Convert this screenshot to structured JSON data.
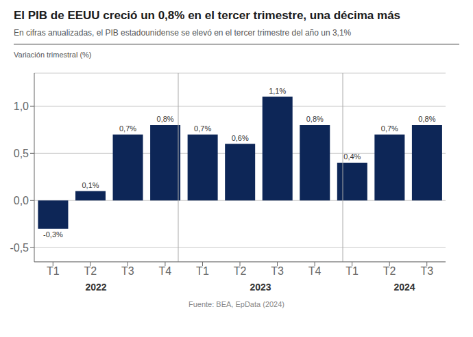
{
  "chart_data": {
    "type": "bar",
    "title": "El PIB de EEUU creció un 0,8% en el tercer trimestre, una décima más",
    "subtitle": "En cifras anualizadas, el PIB estadounidense se elevó en el tercer trimestre del año un 3,1%",
    "ylabel": "Variación trimestral (%)",
    "source": "Fuente: BEA, EpData (2024)",
    "annotations": [
      "2022",
      "2023",
      "2024"
    ],
    "categories": [
      "T1",
      "T2",
      "T3",
      "T4",
      "T1",
      "T2",
      "T3",
      "T4",
      "T1",
      "T2",
      "T3"
    ],
    "values": [
      -0.3,
      0.1,
      0.7,
      0.8,
      0.7,
      0.6,
      1.1,
      0.8,
      0.4,
      0.7,
      0.8
    ],
    "value_labels": [
      "-0,3%",
      "0,1%",
      "0,7%",
      "0,8%",
      "0,7%",
      "0,6%",
      "1,1%",
      "0,8%",
      "0,4%",
      "0,7%",
      "0,8%"
    ],
    "data_labels": true,
    "color": "#0d2657",
    "ylim": [
      -0.65,
      1.35
    ],
    "yticks": [
      {
        "value": -0.5,
        "label": "-0,5"
      },
      {
        "value": 0.0,
        "label": "0,0"
      },
      {
        "value": 0.5,
        "label": "0,5"
      },
      {
        "value": 1.0,
        "label": "1,0"
      }
    ],
    "grid": true
  }
}
